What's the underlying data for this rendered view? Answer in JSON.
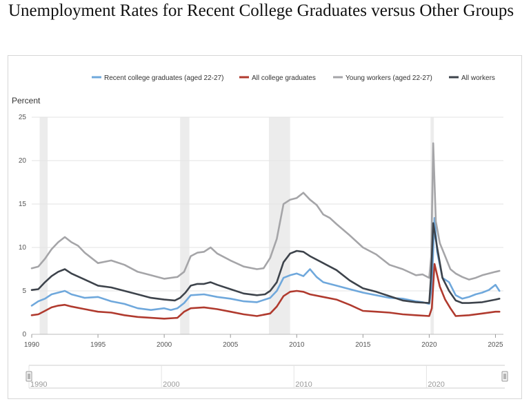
{
  "page": {
    "title": "Unemployment Rates for Recent College Graduates versus Other Groups"
  },
  "chart_data": {
    "type": "line",
    "title": "Unemployment Rates for Recent College Graduates versus Other Groups",
    "ylabel": "Percent",
    "xlabel": "",
    "xlim": [
      1990,
      2025.6
    ],
    "ylim": [
      0,
      25
    ],
    "yticks": [
      0,
      5,
      10,
      15,
      20,
      25
    ],
    "xticks": [
      1990,
      1995,
      2000,
      2005,
      2010,
      2015,
      2020,
      2025
    ],
    "grid": "horizontal",
    "legend_position": "top",
    "recessions": [
      [
        1990.6,
        1991.2
      ],
      [
        2001.2,
        2001.9
      ],
      [
        2007.9,
        2009.5
      ],
      [
        2020.1,
        2020.35
      ]
    ],
    "navigator": {
      "labels": [
        "1990",
        "2000",
        "2010",
        "2020"
      ],
      "range": [
        1990,
        2025.6
      ]
    },
    "series": [
      {
        "name": "Recent college graduates (aged 22-27)",
        "color": "#6fa8dc",
        "x": [
          1990,
          1990.5,
          1991,
          1991.5,
          1992,
          1992.5,
          1993,
          1994,
          1995,
          1996,
          1997,
          1998,
          1999,
          2000,
          2000.5,
          2001,
          2001.5,
          2002,
          2003,
          2004,
          2005,
          2006,
          2007,
          2008,
          2008.5,
          2009,
          2009.5,
          2010,
          2010.5,
          2011,
          2011.5,
          2012,
          2013,
          2014,
          2015,
          2016,
          2017,
          2018,
          2019,
          2019.5,
          2020,
          2020.2,
          2020.4,
          2020.6,
          2021,
          2021.5,
          2022,
          2022.5,
          2023,
          2023.5,
          2024,
          2024.5,
          2025,
          2025.3
        ],
        "values": [
          3.3,
          3.8,
          4.1,
          4.6,
          4.8,
          5.0,
          4.6,
          4.2,
          4.3,
          3.8,
          3.5,
          3.0,
          2.8,
          3.0,
          2.8,
          3.0,
          3.6,
          4.5,
          4.6,
          4.3,
          4.1,
          3.8,
          3.7,
          4.2,
          5.0,
          6.5,
          6.8,
          7.0,
          6.7,
          7.5,
          6.6,
          6.0,
          5.6,
          5.2,
          4.8,
          4.5,
          4.2,
          4.1,
          3.8,
          3.7,
          3.5,
          5.5,
          13.4,
          9.5,
          6.5,
          6.0,
          4.5,
          4.1,
          4.3,
          4.6,
          4.8,
          5.1,
          5.7,
          5.0
        ]
      },
      {
        "name": "All college graduates",
        "color": "#b03a2e",
        "x": [
          1990,
          1990.5,
          1991,
          1991.5,
          1992,
          1992.5,
          1993,
          1994,
          1995,
          1996,
          1997,
          1998,
          1999,
          2000,
          2001,
          2001.5,
          2002,
          2003,
          2004,
          2005,
          2006,
          2007,
          2008,
          2008.5,
          2009,
          2009.5,
          2010,
          2010.5,
          2011,
          2012,
          2013,
          2014,
          2015,
          2016,
          2017,
          2018,
          2019,
          2020,
          2020.2,
          2020.4,
          2020.8,
          2021.2,
          2021.6,
          2022,
          2023,
          2024,
          2025,
          2025.3
        ],
        "values": [
          2.2,
          2.3,
          2.7,
          3.1,
          3.3,
          3.4,
          3.2,
          2.9,
          2.6,
          2.5,
          2.2,
          2.0,
          1.9,
          1.8,
          1.9,
          2.6,
          3.0,
          3.1,
          2.9,
          2.6,
          2.3,
          2.1,
          2.4,
          3.2,
          4.4,
          4.9,
          5.0,
          4.9,
          4.6,
          4.3,
          4.0,
          3.4,
          2.7,
          2.6,
          2.5,
          2.3,
          2.2,
          2.1,
          3.0,
          8.1,
          5.5,
          4.0,
          3.0,
          2.1,
          2.2,
          2.4,
          2.6,
          2.6
        ]
      },
      {
        "name": "Young workers (aged 22-27)",
        "color": "#a5a5a8",
        "x": [
          1990,
          1990.5,
          1991,
          1991.5,
          1992,
          1992.5,
          1993,
          1993.5,
          1994,
          1995,
          1996,
          1997,
          1998,
          1999,
          2000,
          2001,
          2001.5,
          2002,
          2002.5,
          2003,
          2003.5,
          2004,
          2005,
          2006,
          2007,
          2007.5,
          2008,
          2008.5,
          2009,
          2009.5,
          2010,
          2010.5,
          2011,
          2011.5,
          2012,
          2012.5,
          2013,
          2014,
          2015,
          2016,
          2017,
          2018,
          2019,
          2019.5,
          2020,
          2020.15,
          2020.3,
          2020.5,
          2020.8,
          2021.2,
          2021.6,
          2022,
          2022.5,
          2023,
          2023.5,
          2024,
          2024.5,
          2025,
          2025.3
        ],
        "values": [
          7.6,
          7.8,
          8.7,
          9.8,
          10.6,
          11.2,
          10.6,
          10.2,
          9.4,
          8.2,
          8.5,
          8.0,
          7.2,
          6.8,
          6.4,
          6.6,
          7.2,
          9.0,
          9.4,
          9.5,
          10.0,
          9.3,
          8.5,
          7.8,
          7.5,
          7.6,
          8.8,
          11.0,
          15.0,
          15.5,
          15.7,
          16.3,
          15.5,
          14.9,
          13.8,
          13.4,
          12.7,
          11.4,
          10.0,
          9.2,
          8.0,
          7.5,
          6.8,
          6.9,
          6.5,
          9.0,
          22.0,
          13.0,
          10.5,
          9.0,
          7.5,
          7.0,
          6.6,
          6.3,
          6.5,
          6.8,
          7.0,
          7.2,
          7.3
        ]
      },
      {
        "name": "All workers",
        "color": "#3d434b",
        "x": [
          1990,
          1990.5,
          1991,
          1991.5,
          1992,
          1992.5,
          1993,
          1994,
          1995,
          1996,
          1997,
          1998,
          1999,
          2000,
          2000.8,
          2001.2,
          2001.6,
          2002,
          2002.5,
          2003,
          2003.5,
          2004,
          2005,
          2006,
          2007,
          2007.6,
          2008,
          2008.5,
          2009,
          2009.5,
          2010,
          2010.5,
          2011,
          2012,
          2013,
          2014,
          2015,
          2016,
          2017,
          2018,
          2019,
          2020,
          2020.15,
          2020.3,
          2020.6,
          2021,
          2021.5,
          2022,
          2022.5,
          2023,
          2024,
          2025,
          2025.3
        ],
        "values": [
          5.1,
          5.2,
          6.0,
          6.7,
          7.2,
          7.5,
          7.0,
          6.3,
          5.6,
          5.4,
          5.0,
          4.6,
          4.2,
          4.0,
          3.9,
          4.2,
          4.8,
          5.6,
          5.8,
          5.8,
          6.0,
          5.7,
          5.2,
          4.7,
          4.5,
          4.6,
          5.0,
          6.0,
          8.3,
          9.3,
          9.6,
          9.5,
          9.0,
          8.2,
          7.4,
          6.2,
          5.3,
          4.9,
          4.4,
          3.9,
          3.7,
          3.6,
          7.0,
          12.8,
          10.0,
          6.5,
          5.0,
          3.9,
          3.6,
          3.6,
          3.7,
          4.0,
          4.1
        ]
      }
    ]
  }
}
